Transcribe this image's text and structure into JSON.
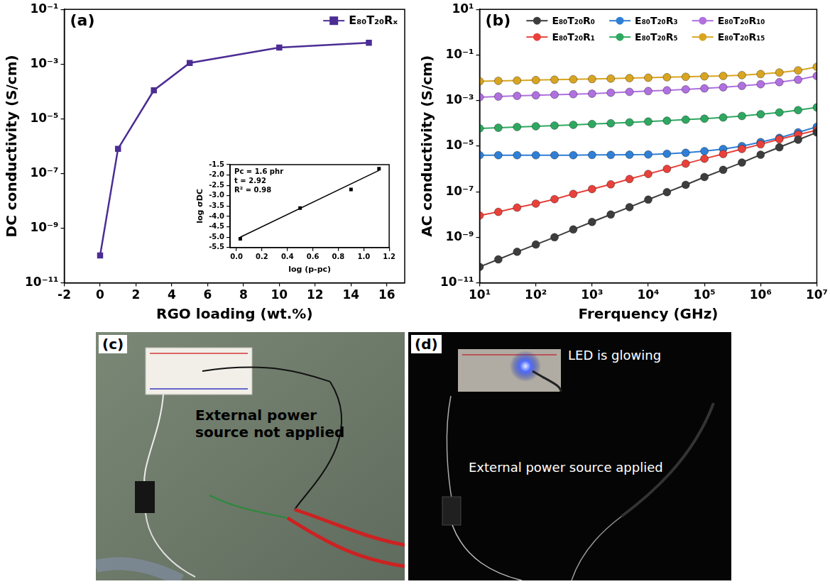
{
  "chart_data": [
    {
      "type": "line",
      "panel_label": "(a)",
      "x_label": "RGO loading (wt.%)",
      "y_label": "DC conductivity (S/cm)",
      "log": "y",
      "grid": false,
      "legend": "top-right",
      "xlim": [
        -2,
        17
      ],
      "xticks": [
        -2,
        0,
        2,
        4,
        6,
        8,
        10,
        12,
        14,
        16
      ],
      "ylim": [
        1e-11,
        0.1
      ],
      "yticks": [
        {
          "value": 1e-11,
          "label": "10⁻¹¹"
        },
        {
          "value": 1e-09,
          "label": "10⁻⁹"
        },
        {
          "value": 1e-07,
          "label": "10⁻⁷"
        },
        {
          "value": 1e-05,
          "label": "10⁻⁵"
        },
        {
          "value": 0.001,
          "label": "10⁻³"
        },
        {
          "value": 0.1,
          "label": "10⁻¹"
        }
      ],
      "x": [
        0,
        1,
        3,
        5,
        10,
        15
      ],
      "series": [
        {
          "name": "E₈₀T₂₀Rₓ",
          "color": "#4b2d94",
          "marker": "square",
          "values": [
            1e-10,
            8e-07,
            0.00011,
            0.0011,
            0.004,
            0.006
          ]
        }
      ]
    },
    {
      "type": "scatter",
      "grid": false,
      "x_label": "log (p-pc)",
      "y_label": "log σDC",
      "annotations": [
        "Pc = 1.6 phr",
        "t = 2.92",
        "R² = 0.98"
      ],
      "xlim": [
        -0.05,
        1.2
      ],
      "xticks": [
        {
          "value": 0,
          "label": "0.0"
        },
        0.2,
        0.4,
        0.6,
        0.8,
        {
          "value": 1,
          "label": "1.0"
        },
        1.2
      ],
      "ylim": [
        -5.5,
        -1.5
      ],
      "yticks": [
        -5.5,
        {
          "value": -5,
          "label": "-5.0"
        },
        -4.5,
        {
          "value": -4,
          "label": "-4.0"
        },
        -3.5,
        {
          "value": -3,
          "label": "-3.0"
        },
        -2.5,
        {
          "value": -2,
          "label": "-2.0"
        },
        -1.5
      ],
      "series": [
        {
          "type": "scatter",
          "marker": "square",
          "color": "#000000",
          "x": [
            0.03,
            0.5,
            0.9,
            1.12
          ],
          "values": [
            -5.08,
            -3.6,
            -2.7,
            -1.7
          ]
        },
        {
          "type": "line",
          "marker": "none",
          "color": "#000000",
          "x": [
            0.03,
            1.12
          ],
          "values": [
            -5.0,
            -1.78
          ]
        }
      ]
    },
    {
      "type": "line",
      "panel_label": "(b)",
      "x_label": "Frerquency (GHz)",
      "y_label": "AC conductivity (S/cm)",
      "log": true,
      "grid": false,
      "legend": "top",
      "marker": "circle",
      "xlim": [
        10,
        10000000
      ],
      "xticks": [
        {
          "value": 10,
          "label": "10¹"
        },
        {
          "value": 100,
          "label": "10²"
        },
        {
          "value": 1000,
          "label": "10³"
        },
        {
          "value": 10000,
          "label": "10⁴"
        },
        {
          "value": 100000,
          "label": "10⁵"
        },
        {
          "value": 1000000,
          "label": "10⁶"
        },
        {
          "value": 10000000,
          "label": "10⁷"
        }
      ],
      "ylim": [
        1e-11,
        10
      ],
      "yticks": [
        {
          "value": 1e-11,
          "label": "10⁻¹¹"
        },
        {
          "value": 1e-09,
          "label": "10⁻⁹"
        },
        {
          "value": 1e-07,
          "label": "10⁻⁷"
        },
        {
          "value": 1e-05,
          "label": "10⁻⁵"
        },
        {
          "value": 0.001,
          "label": "10⁻³"
        },
        {
          "value": 0.1,
          "label": "10⁻¹"
        },
        {
          "value": 10,
          "label": "10¹"
        }
      ],
      "x": [
        10,
        21.5,
        46.4,
        100,
        215,
        464,
        1000,
        2154,
        4642,
        10000,
        21544,
        46416,
        100000,
        215443,
        464159,
        1000000,
        2154435,
        4641589,
        10000000
      ],
      "series": [
        {
          "name": "E₈₀T₂₀R₀",
          "color": "#3d3d3d",
          "values": [
            5e-11,
            1.07e-10,
            2.3e-10,
            4.8e-10,
            1e-09,
            2.2e-09,
            4.7e-09,
            1e-08,
            2.1e-08,
            4.5e-08,
            9.5e-08,
            2e-07,
            4.4e-07,
            9.1e-07,
            1.9e-06,
            4.2e-06,
            8.9e-06,
            1.9e-05,
            4e-05
          ]
        },
        {
          "name": "E₈₀T₂₀R₁",
          "color": "#e8413b",
          "values": [
            9e-09,
            1.3e-08,
            2e-08,
            3e-08,
            4.7e-08,
            8e-08,
            1.3e-07,
            2.1e-07,
            3.6e-07,
            6e-07,
            1e-06,
            1.7e-06,
            2.8e-06,
            4.5e-06,
            7.5e-06,
            1.2e-05,
            2e-05,
            3.2e-05,
            5e-05
          ]
        },
        {
          "name": "E₈₀T₂₀R₃",
          "color": "#2f7fd6",
          "values": [
            4e-06,
            4e-06,
            4e-06,
            4e-06,
            4e-06,
            4e-06,
            4.1e-06,
            4.1e-06,
            4.2e-06,
            4.3e-06,
            4.6e-06,
            5.1e-06,
            6e-06,
            7.5e-06,
            1e-05,
            1.5e-05,
            2.3e-05,
            4e-05,
            7e-05
          ]
        },
        {
          "name": "E₈₀T₂₀R₅",
          "color": "#2ea860",
          "values": [
            6e-05,
            6.4e-05,
            6.9e-05,
            7.4e-05,
            8e-05,
            8.6e-05,
            9.3e-05,
            0.0001,
            0.00011,
            0.00012,
            0.00013,
            0.000145,
            0.00016,
            0.00018,
            0.00021,
            0.00025,
            0.0003,
            0.00038,
            0.0005
          ]
        },
        {
          "name": "E₈₀T₂₀R₁₀",
          "color": "#b070e0",
          "values": [
            0.0014,
            0.0015,
            0.0016,
            0.0017,
            0.0018,
            0.0019,
            0.002,
            0.0022,
            0.0024,
            0.0026,
            0.0028,
            0.0031,
            0.0034,
            0.0038,
            0.0044,
            0.0052,
            0.0064,
            0.0082,
            0.012
          ]
        },
        {
          "name": "E₈₀T₂₀R₁₅",
          "color": "#d9a521",
          "values": [
            0.007,
            0.0073,
            0.0076,
            0.0079,
            0.0082,
            0.0085,
            0.0088,
            0.0092,
            0.0096,
            0.01,
            0.0105,
            0.011,
            0.0115,
            0.012,
            0.013,
            0.0145,
            0.017,
            0.021,
            0.03
          ]
        }
      ]
    }
  ],
  "photos": [
    {
      "panel_label": "(c)",
      "annotations": [
        "External power source not applied"
      ]
    },
    {
      "panel_label": "(d)",
      "annotations": [
        "LED is glowing",
        "External power source applied"
      ]
    }
  ]
}
